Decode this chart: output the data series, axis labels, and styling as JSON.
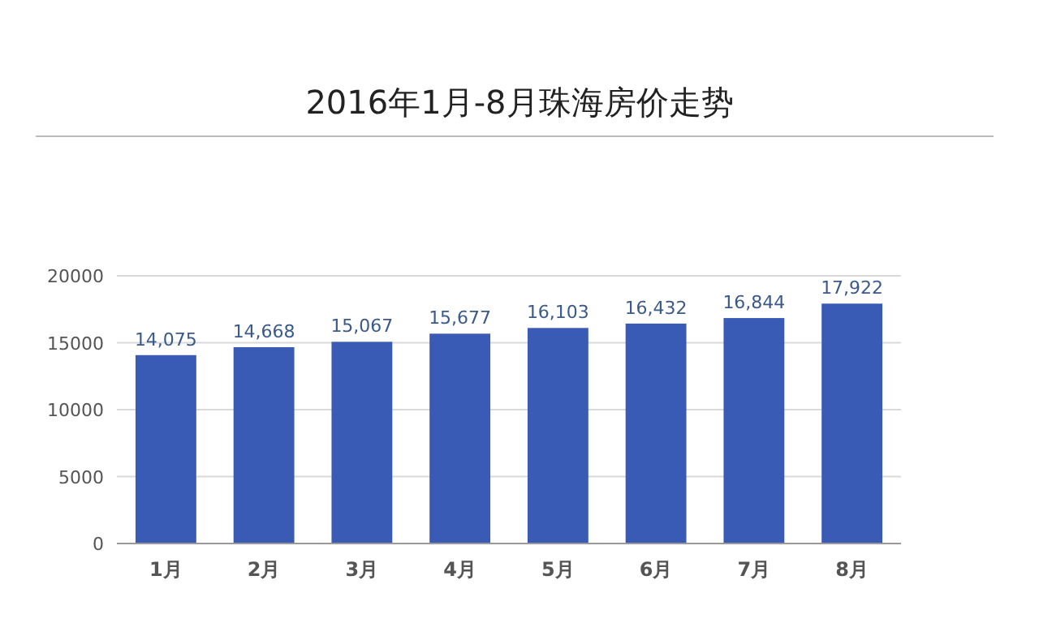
{
  "chart_data": {
    "type": "bar",
    "title": "2016年1月-8月珠海房价走势",
    "categories": [
      "1月",
      "2月",
      "3月",
      "4月",
      "5月",
      "6月",
      "7月",
      "8月"
    ],
    "values": [
      14075,
      14668,
      15067,
      15677,
      16103,
      16432,
      16844,
      17922
    ],
    "value_labels": [
      "14,075",
      "14,668",
      "15,067",
      "15,677",
      "16,103",
      "16,432",
      "16,844",
      "17,922"
    ],
    "color": "#3a5bb5",
    "ylim": [
      0,
      20000
    ],
    "yticks": [
      0,
      5000,
      10000,
      15000,
      20000
    ],
    "grid": "y"
  }
}
